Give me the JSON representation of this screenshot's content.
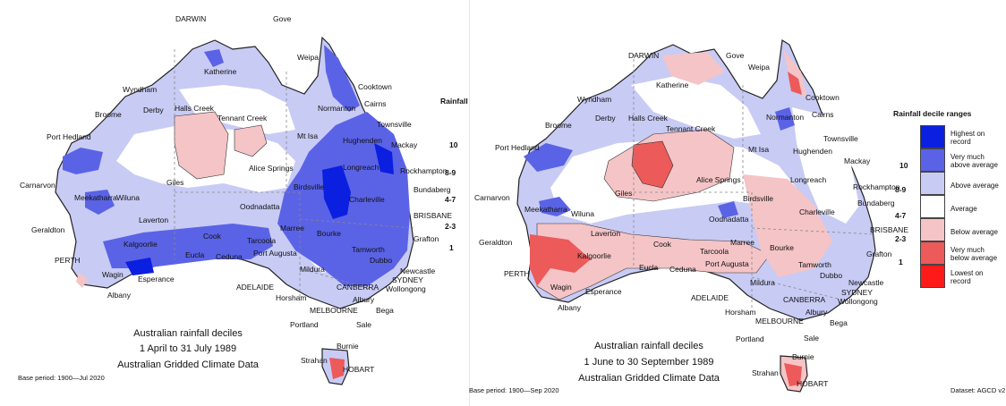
{
  "colors": {
    "highest": "#0a1fe0",
    "very_much_above": "#5a63e6",
    "above": "#c8cbf4",
    "average": "#ffffff",
    "below": "#f5c4c6",
    "very_much_below": "#ec5a5a",
    "lowest": "#ff1a1a",
    "coast": "#222222"
  },
  "left_map": {
    "caption": [
      "Australian rainfall deciles",
      "1 April to 31 July 1989",
      "Australian Gridded Climate Data"
    ],
    "base_period": "Base period: 1900—Jul 2020",
    "legend_title": "Rainfall",
    "ranks": [
      "10",
      "8-9",
      "4-7",
      "2-3",
      "1"
    ],
    "cities": [
      "DARWIN",
      "Gove",
      "Weipa",
      "Katherine",
      "Wyndham",
      "Cooktown",
      "Broome",
      "Derby",
      "Halls Creek",
      "Tennant Creek",
      "Normanton",
      "Cairns",
      "Townsville",
      "Port Hedland",
      "Mt Isa",
      "Hughenden",
      "Mackay",
      "Alice Springs",
      "Longreach",
      "Rockhampton",
      "Giles",
      "Carnarvon",
      "Wiluna",
      "Meekatharra",
      "Birdsville",
      "Bundaberg",
      "Charleville",
      "Laverton",
      "Oodnadatta",
      "Geraldton",
      "Marree",
      "BRISBANE",
      "Kalgoorlie",
      "Cook",
      "Bourke",
      "Grafton",
      "Tarcoola",
      "Tamworth",
      "PERTH",
      "Eucla",
      "Ceduna",
      "Port Augusta",
      "Dubbo",
      "Wagin",
      "Newcastle",
      "Esperance",
      "Mildura",
      "SYDNEY",
      "Albany",
      "ADELAIDE",
      "Horsham",
      "CANBERRA",
      "Wollongong",
      "Albury",
      "MELBOURNE",
      "Bega",
      "Portland",
      "Sale",
      "Burnie",
      "Strahan",
      "HOBART"
    ]
  },
  "right_map": {
    "caption": [
      "Australian rainfall deciles",
      "1 June to 30 September 1989",
      "Australian Gridded Climate Data"
    ],
    "base_period": "Base period: 1900—Sep 2020",
    "dataset": "Dataset: AGCD v2",
    "legend_title": "Rainfall decile ranges",
    "legend": [
      {
        "label": "Highest on record",
        "color": "#0a1fe0"
      },
      {
        "label": "Very much above average",
        "color": "#5a63e6"
      },
      {
        "label": "Above average",
        "color": "#c8cbf4"
      },
      {
        "label": "Average",
        "color": "#ffffff"
      },
      {
        "label": "Below average",
        "color": "#f5c4c6"
      },
      {
        "label": "Very much below average",
        "color": "#ec5a5a"
      },
      {
        "label": "Lowest on record",
        "color": "#ff1a1a"
      }
    ],
    "ranks": [
      "10",
      "8-9",
      "4-7",
      "2-3",
      "1"
    ],
    "cities": [
      "DARWIN",
      "Gove",
      "Weipa",
      "Katherine",
      "Wyndham",
      "Cooktown",
      "Broome",
      "Derby",
      "Halls Creek",
      "Tennant Creek",
      "Normanton",
      "Cairns",
      "Townsville",
      "Port Hedland",
      "Mt Isa",
      "Hughenden",
      "Mackay",
      "Alice Springs",
      "Longreach",
      "Rockhampton",
      "Giles",
      "Carnarvon",
      "Wiluna",
      "Meekatharra",
      "Birdsville",
      "Bundaberg",
      "Charleville",
      "Laverton",
      "Oodnadatta",
      "Geraldton",
      "Marree",
      "BRISBANE",
      "Kalgoorlie",
      "Cook",
      "Bourke",
      "Grafton",
      "Tarcoola",
      "Tamworth",
      "PERTH",
      "Eucla",
      "Ceduna",
      "Port Augusta",
      "Dubbo",
      "Wagin",
      "Newcastle",
      "Esperance",
      "Mildura",
      "SYDNEY",
      "Albany",
      "ADELAIDE",
      "Horsham",
      "CANBERRA",
      "Wollongong",
      "Albury",
      "MELBOURNE",
      "Bega",
      "Portland",
      "Sale",
      "Burnie",
      "Strahan",
      "HOBART"
    ]
  }
}
